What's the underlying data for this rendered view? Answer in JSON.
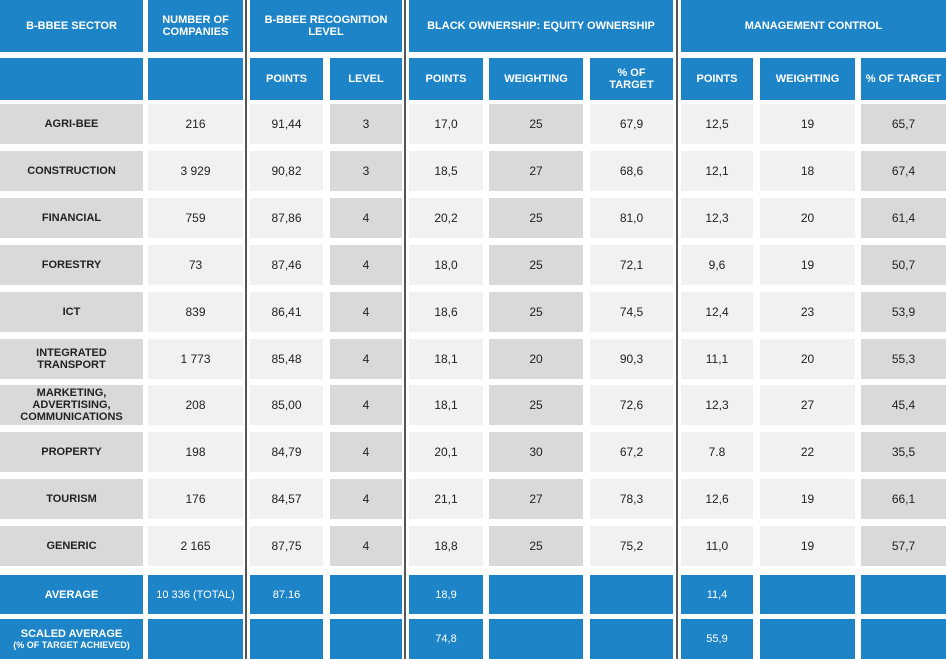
{
  "table": {
    "header": {
      "sector": "B-BBEE SECTOR",
      "companies": "NUMBER OF COMPANIES",
      "recognition": "B-BBEE RECOGNITION LEVEL",
      "ownership": "BLACK OWNERSHIP: EQUITY OWNERSHIP",
      "management": "MANAGEMENT CONTROL"
    },
    "subheader": {
      "recognition_points": "POINTS",
      "recognition_level": "LEVEL",
      "ownership_points": "POINTS",
      "ownership_weighting": "WEIGHTING",
      "ownership_target": "% OF TARGET",
      "management_points": "POINTS",
      "management_weighting": "WEIGHTING",
      "management_target": "% OF TARGET"
    },
    "rows": [
      [
        "AGRI-BEE",
        "216",
        "91,44",
        "3",
        "17,0",
        "25",
        "67,9",
        "12,5",
        "19",
        "65,7"
      ],
      [
        "CONSTRUCTION",
        "3 929",
        "90,82",
        "3",
        "18,5",
        "27",
        "68,6",
        "12,1",
        "18",
        "67,4"
      ],
      [
        "FINANCIAL",
        "759",
        "87,86",
        "4",
        "20,2",
        "25",
        "81,0",
        "12,3",
        "20",
        "61,4"
      ],
      [
        "FORESTRY",
        "73",
        "87,46",
        "4",
        "18,0",
        "25",
        "72,1",
        "9,6",
        "19",
        "50,7"
      ],
      [
        "ICT",
        "839",
        "86,41",
        "4",
        "18,6",
        "25",
        "74,5",
        "12,4",
        "23",
        "53,9"
      ],
      [
        "INTEGRATED TRANSPORT",
        "1 773",
        "85,48",
        "4",
        "18,1",
        "20",
        "90,3",
        "11,1",
        "20",
        "55,3"
      ],
      [
        "MARKETING, ADVERTISING, COMMUNICATIONS",
        "208",
        "85,00",
        "4",
        "18,1",
        "25",
        "72,6",
        "12,3",
        "27",
        "45,4"
      ],
      [
        "PROPERTY",
        "198",
        "84,79",
        "4",
        "20,1",
        "30",
        "67,2",
        "7.8",
        "22",
        "35,5"
      ],
      [
        "TOURISM",
        "176",
        "84,57",
        "4",
        "21,1",
        "27",
        "78,3",
        "12,6",
        "19",
        "66,1"
      ],
      [
        "GENERIC",
        "2 165",
        "87,75",
        "4",
        "18,8",
        "25",
        "75,2",
        "11,0",
        "19",
        "57,7"
      ]
    ],
    "average": {
      "label": "AVERAGE",
      "companies": "10 336 (TOTAL)",
      "recognition_points": "87.16",
      "ownership_points": "18,9",
      "management_points": "11,4"
    },
    "scaled_average": {
      "label": "SCALED AVERAGE",
      "note": "(% OF TARGET ACHIEVED)",
      "ownership_points": "74,8",
      "management_points": "55,9"
    }
  }
}
